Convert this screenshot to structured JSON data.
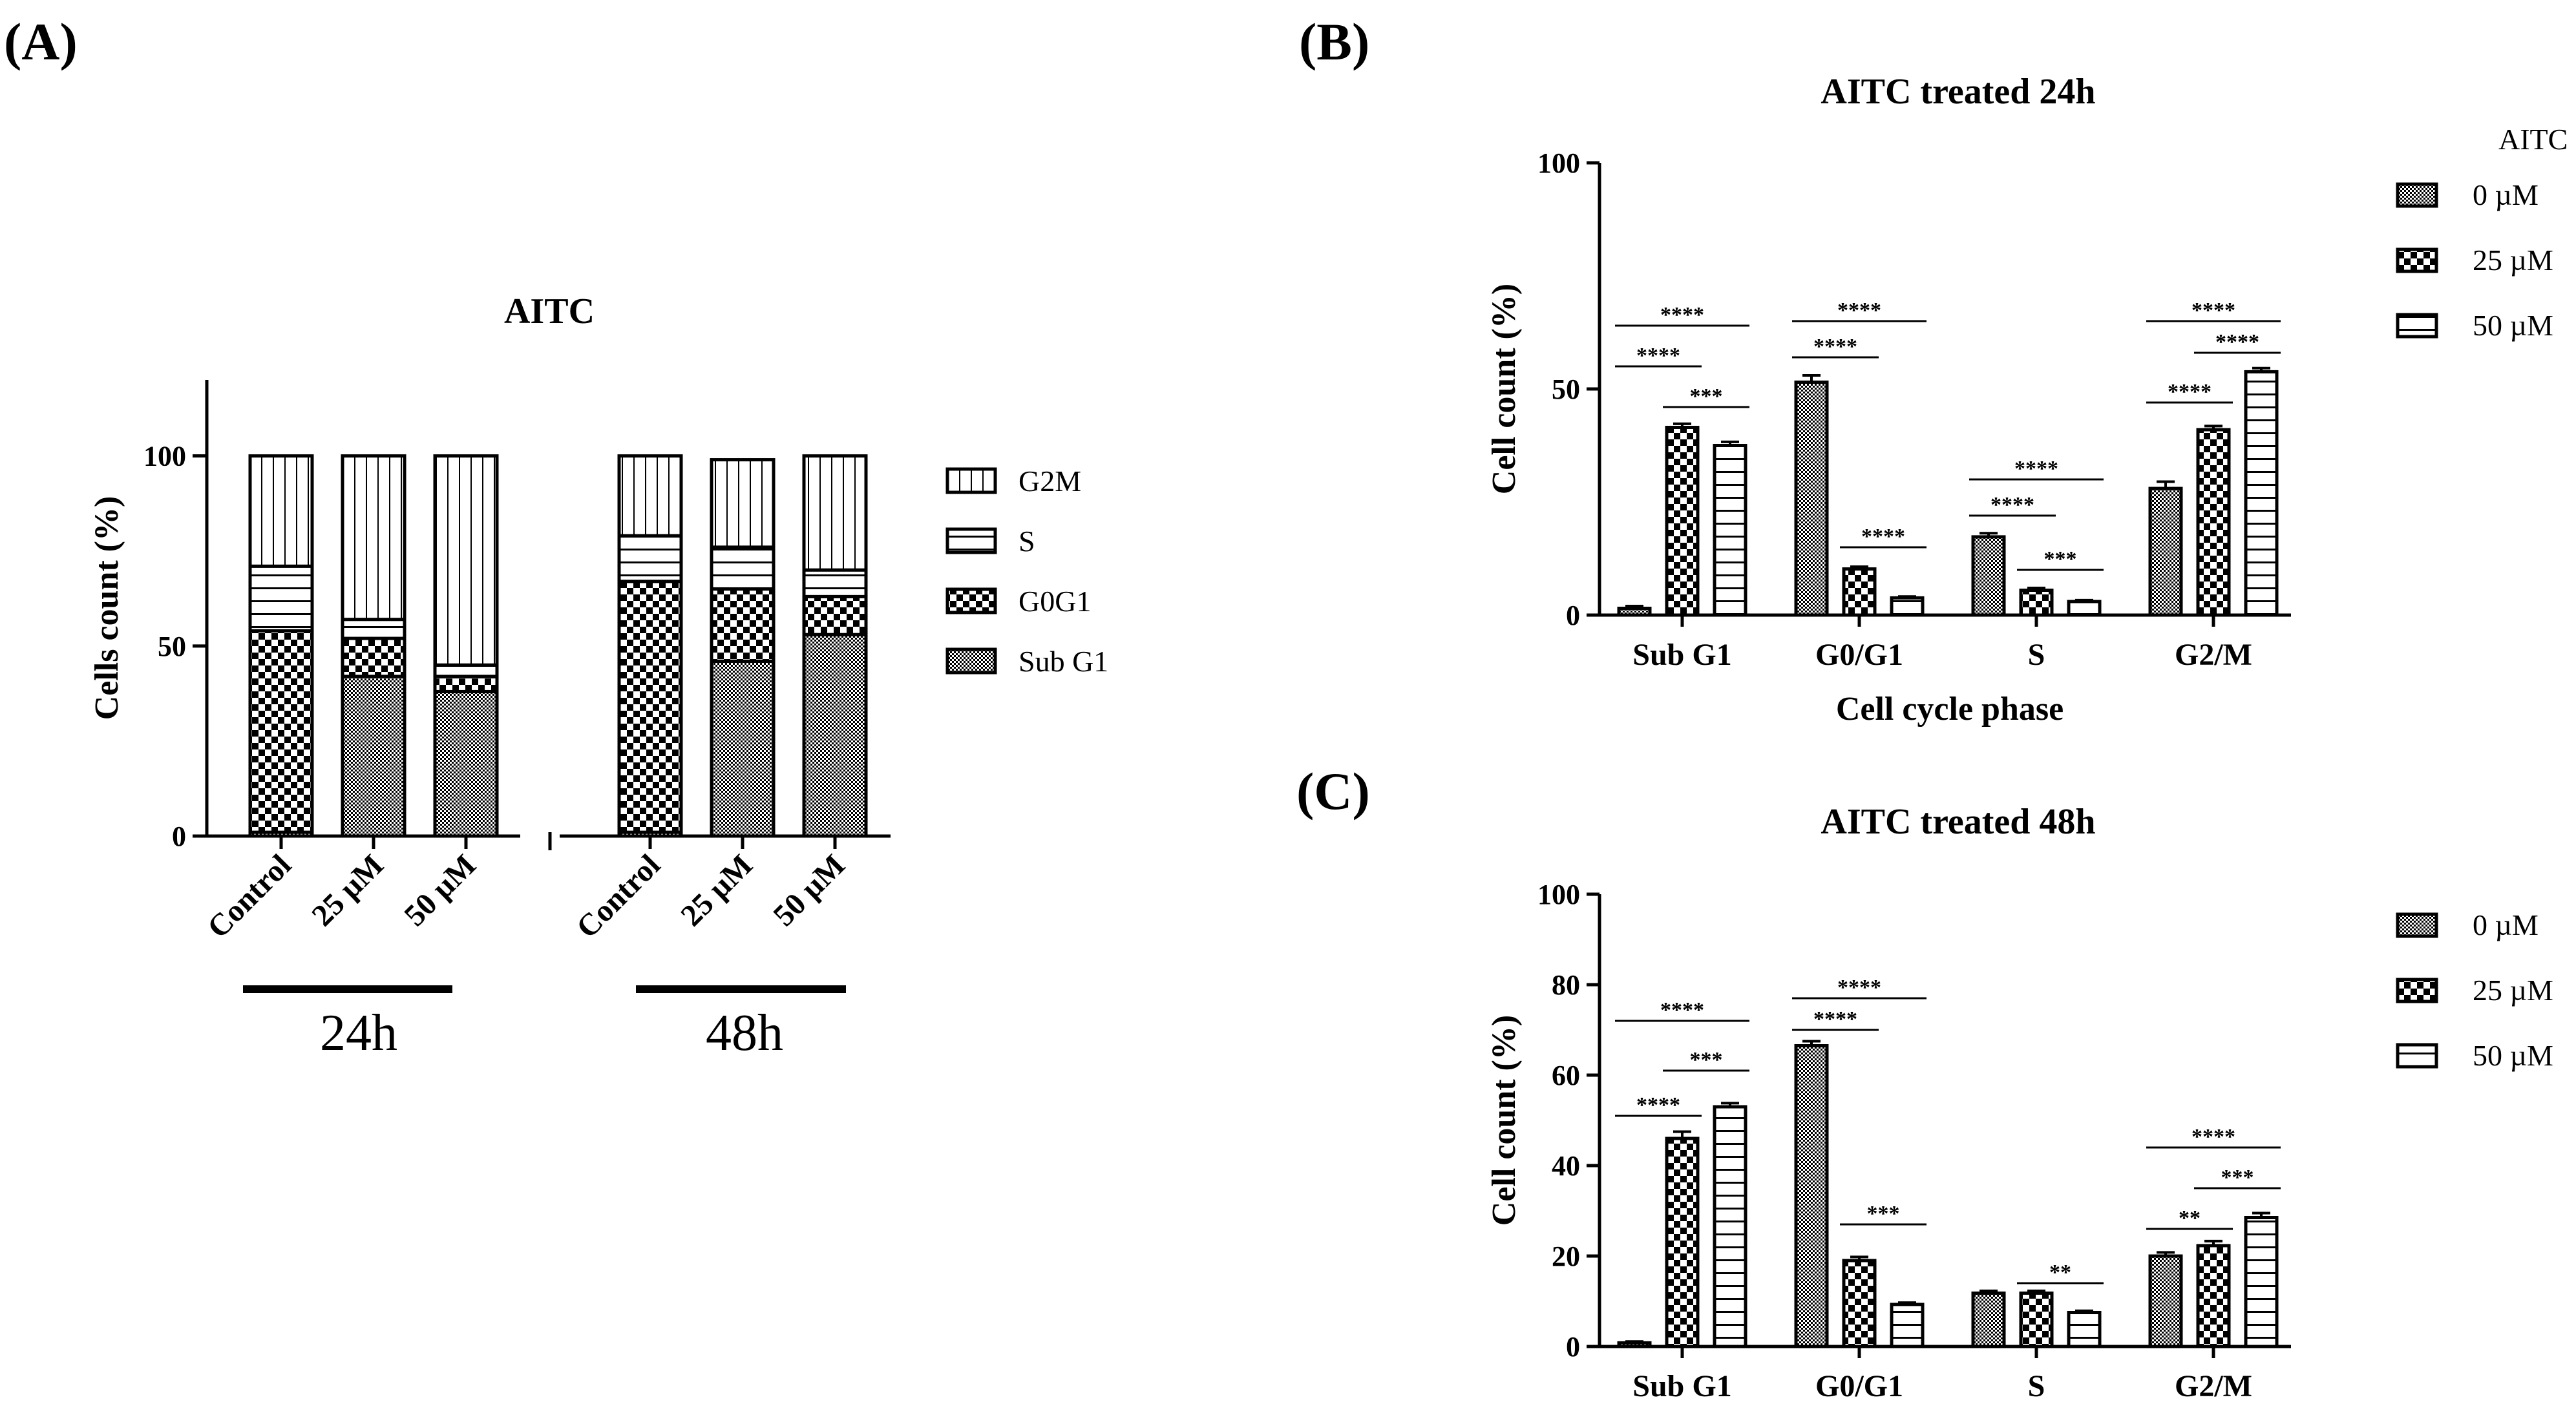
{
  "colors": {
    "ink": "#000000",
    "background": "#ffffff",
    "bar_fill": "#ffffff"
  },
  "panels": {
    "a": {
      "label": "(A)"
    },
    "b": {
      "label": "(B)"
    },
    "c": {
      "label": "(C)"
    }
  },
  "chart_data": [
    {
      "id": "A",
      "type": "bar",
      "stacked": true,
      "title": "AITC",
      "ylabel": "Cells count (%)",
      "xlabel": "",
      "ylim": [
        0,
        120
      ],
      "yticks": [
        0,
        50,
        100
      ],
      "categories": [
        "Control",
        "25 µM",
        "50 µM",
        "Control",
        "25 µM",
        "50 µM"
      ],
      "groups": [
        {
          "label": "24h",
          "categories": [
            "Control",
            "25 µM",
            "50 µM"
          ]
        },
        {
          "label": "48h",
          "categories": [
            "Control",
            "25 µM",
            "50 µM"
          ]
        }
      ],
      "legend_position": "right",
      "series": [
        {
          "name": "Sub G1",
          "pattern": "dense-check",
          "values": [
            1,
            42,
            38,
            1,
            46,
            53
          ]
        },
        {
          "name": "G0G1",
          "pattern": "checker",
          "values": [
            53,
            10,
            4,
            66,
            19,
            10
          ]
        },
        {
          "name": "S",
          "pattern": "horizontal",
          "values": [
            17,
            5,
            3,
            12,
            11,
            7
          ]
        },
        {
          "name": "G2M",
          "pattern": "vertical",
          "values": [
            29,
            43,
            55,
            21,
            23,
            30
          ]
        }
      ]
    },
    {
      "id": "B",
      "type": "bar",
      "title": "AITC treated 24h",
      "ylabel": "Cell count (%)",
      "xlabel": "Cell cycle phase",
      "ylim": [
        0,
        100
      ],
      "yticks": [
        0,
        50,
        100
      ],
      "categories": [
        "Sub G1",
        "G0/G1",
        "S",
        "G2/M"
      ],
      "legend_title": "AITC",
      "legend_position": "right",
      "series": [
        {
          "name": "0   µM",
          "pattern": "dense-check",
          "values": [
            1.5,
            51.5,
            17.3,
            28.0
          ],
          "errors": [
            0.5,
            1.5,
            0.8,
            1.5
          ]
        },
        {
          "name": "25 µM",
          "pattern": "checker",
          "values": [
            41.5,
            10.2,
            5.5,
            41.0
          ],
          "errors": [
            0.8,
            0.5,
            0.5,
            0.8
          ]
        },
        {
          "name": "50 µM",
          "pattern": "horizontal",
          "values": [
            37.5,
            3.8,
            3.0,
            53.8
          ],
          "errors": [
            0.8,
            0.3,
            0.3,
            0.8
          ]
        }
      ],
      "annotations": [
        {
          "text": "****",
          "category": 0,
          "from": 0,
          "to": 2,
          "y": 64
        },
        {
          "text": "****",
          "category": 0,
          "from": 0,
          "to": 1,
          "y": 55
        },
        {
          "text": "***",
          "category": 0,
          "from": 1,
          "to": 2,
          "y": 46
        },
        {
          "text": "****",
          "category": 1,
          "from": 0,
          "to": 2,
          "y": 65
        },
        {
          "text": "****",
          "category": 1,
          "from": 0,
          "to": 1,
          "y": 57
        },
        {
          "text": "****",
          "category": 1,
          "from": 1,
          "to": 2,
          "y": 15
        },
        {
          "text": "****",
          "category": 2,
          "from": 0,
          "to": 2,
          "y": 30
        },
        {
          "text": "****",
          "category": 2,
          "from": 0,
          "to": 1,
          "y": 22
        },
        {
          "text": "***",
          "category": 2,
          "from": 1,
          "to": 2,
          "y": 10
        },
        {
          "text": "****",
          "category": 3,
          "from": 0,
          "to": 2,
          "y": 65
        },
        {
          "text": "****",
          "category": 3,
          "from": 0,
          "to": 1,
          "y": 47
        },
        {
          "text": "****",
          "category": 3,
          "from": 1,
          "to": 2,
          "y": 58
        }
      ]
    },
    {
      "id": "C",
      "type": "bar",
      "title": "AITC treated 48h",
      "ylabel": "Cell count (%)",
      "xlabel": "",
      "ylim": [
        0,
        100
      ],
      "yticks": [
        0,
        20,
        40,
        60,
        80,
        100
      ],
      "categories": [
        "Sub G1",
        "G0/G1",
        "S",
        "G2/M"
      ],
      "legend_position": "right",
      "series": [
        {
          "name": "0 µM",
          "pattern": "dense-check",
          "values": [
            0.8,
            66.5,
            11.8,
            20.0
          ],
          "errors": [
            0.3,
            1.0,
            0.5,
            0.8
          ]
        },
        {
          "name": "25 µM",
          "pattern": "checker",
          "values": [
            46.0,
            19.0,
            11.8,
            22.3
          ],
          "errors": [
            1.5,
            0.8,
            0.5,
            1.0
          ]
        },
        {
          "name": "50 µM",
          "pattern": "horizontal",
          "values": [
            53.0,
            9.3,
            7.5,
            28.5
          ],
          "errors": [
            0.8,
            0.4,
            0.4,
            1.0
          ]
        }
      ],
      "annotations": [
        {
          "text": "****",
          "category": 0,
          "from": 0,
          "to": 2,
          "y": 72
        },
        {
          "text": "****",
          "category": 0,
          "from": 0,
          "to": 1,
          "y": 51
        },
        {
          "text": "***",
          "category": 0,
          "from": 1,
          "to": 2,
          "y": 61
        },
        {
          "text": "****",
          "category": 1,
          "from": 0,
          "to": 2,
          "y": 77
        },
        {
          "text": "****",
          "category": 1,
          "from": 0,
          "to": 1,
          "y": 70
        },
        {
          "text": "***",
          "category": 1,
          "from": 1,
          "to": 2,
          "y": 27
        },
        {
          "text": "**",
          "category": 2,
          "from": 1,
          "to": 2,
          "y": 14
        },
        {
          "text": "****",
          "category": 3,
          "from": 0,
          "to": 2,
          "y": 44
        },
        {
          "text": "**",
          "category": 3,
          "from": 0,
          "to": 1,
          "y": 26
        },
        {
          "text": "***",
          "category": 3,
          "from": 1,
          "to": 2,
          "y": 35
        }
      ]
    }
  ]
}
